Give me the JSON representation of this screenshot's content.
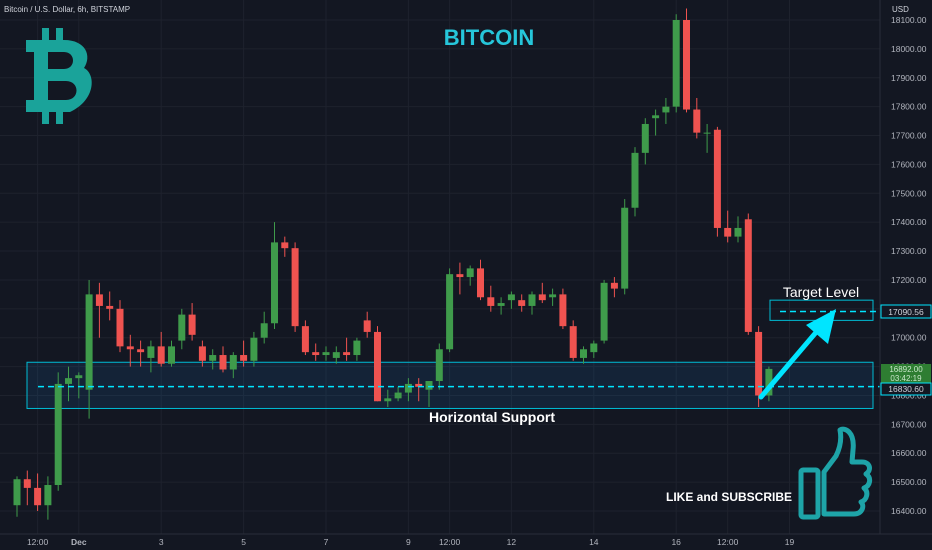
{
  "header": {
    "symbol_line": "Bitcoin / U.S. Dollar, 6h, BITSTAMP",
    "currency": "USD"
  },
  "title": "BITCOIN",
  "annotations": {
    "target_label": "Target Level",
    "support_label": "Horizontal Support",
    "cta_label": "LIKE and SUBSCRIBE"
  },
  "price_tags": {
    "target": "17090.56",
    "support": "16830.60",
    "last": "16892.00",
    "countdown": "03:42:19"
  },
  "colors": {
    "background": "#131722",
    "up": "#26a69a",
    "up_body": "#3f9b4b",
    "down": "#ef5350",
    "accent": "#00e5ff",
    "title": "#26c6da",
    "logo": "#1aa39a",
    "thumb": "#1ea4a8"
  },
  "icons": {
    "logo": "bitcoin-logo-icon",
    "cta": "thumbs-up-icon"
  },
  "chart_data": {
    "type": "candlestick",
    "title": "BITCOIN",
    "ylabel": "USD",
    "ylim": [
      16350,
      18140
    ],
    "y_ticks": [
      16400,
      16500,
      16600,
      16700,
      16800,
      16900,
      17000,
      17100,
      17200,
      17300,
      17400,
      17500,
      17600,
      17700,
      17800,
      17900,
      18000,
      18100
    ],
    "x_tick_labels": [
      {
        "label": "12:00",
        "candle": 2
      },
      {
        "label": "Dec",
        "candle": 6
      },
      {
        "label": "3",
        "candle": 14
      },
      {
        "label": "5",
        "candle": 22
      },
      {
        "label": "7",
        "candle": 30
      },
      {
        "label": "9",
        "candle": 38
      },
      {
        "label": "12:00",
        "candle": 42
      },
      {
        "label": "12",
        "candle": 48
      },
      {
        "label": "14",
        "candle": 56
      },
      {
        "label": "16",
        "candle": 64
      },
      {
        "label": "12:00",
        "candle": 69
      },
      {
        "label": "19",
        "candle": 75
      }
    ],
    "candles": [
      {
        "o": 16420,
        "h": 16520,
        "l": 16380,
        "c": 16510
      },
      {
        "o": 16510,
        "h": 16540,
        "l": 16420,
        "c": 16480
      },
      {
        "o": 16480,
        "h": 16530,
        "l": 16400,
        "c": 16420
      },
      {
        "o": 16420,
        "h": 16520,
        "l": 16370,
        "c": 16490
      },
      {
        "o": 16490,
        "h": 16880,
        "l": 16470,
        "c": 16840
      },
      {
        "o": 16840,
        "h": 16900,
        "l": 16780,
        "c": 16860
      },
      {
        "o": 16860,
        "h": 16880,
        "l": 16790,
        "c": 16870
      },
      {
        "o": 16820,
        "h": 17200,
        "l": 16720,
        "c": 17150
      },
      {
        "o": 17150,
        "h": 17190,
        "l": 17000,
        "c": 17110
      },
      {
        "o": 17110,
        "h": 17160,
        "l": 17060,
        "c": 17100
      },
      {
        "o": 17100,
        "h": 17130,
        "l": 16950,
        "c": 16970
      },
      {
        "o": 16970,
        "h": 17010,
        "l": 16900,
        "c": 16960
      },
      {
        "o": 16960,
        "h": 16990,
        "l": 16900,
        "c": 16950
      },
      {
        "o": 16930,
        "h": 16990,
        "l": 16880,
        "c": 16970
      },
      {
        "o": 16970,
        "h": 17020,
        "l": 16900,
        "c": 16910
      },
      {
        "o": 16910,
        "h": 16990,
        "l": 16900,
        "c": 16970
      },
      {
        "o": 16990,
        "h": 17100,
        "l": 16960,
        "c": 17080
      },
      {
        "o": 17080,
        "h": 17120,
        "l": 16990,
        "c": 17010
      },
      {
        "o": 16970,
        "h": 16990,
        "l": 16900,
        "c": 16920
      },
      {
        "o": 16920,
        "h": 16960,
        "l": 16890,
        "c": 16940
      },
      {
        "o": 16940,
        "h": 16970,
        "l": 16880,
        "c": 16890
      },
      {
        "o": 16890,
        "h": 16950,
        "l": 16860,
        "c": 16940
      },
      {
        "o": 16940,
        "h": 16990,
        "l": 16900,
        "c": 16920
      },
      {
        "o": 16920,
        "h": 17020,
        "l": 16900,
        "c": 17000
      },
      {
        "o": 17000,
        "h": 17090,
        "l": 16980,
        "c": 17050
      },
      {
        "o": 17050,
        "h": 17400,
        "l": 17030,
        "c": 17330
      },
      {
        "o": 17330,
        "h": 17350,
        "l": 17280,
        "c": 17310
      },
      {
        "o": 17310,
        "h": 17330,
        "l": 17020,
        "c": 17040
      },
      {
        "o": 17040,
        "h": 17060,
        "l": 16940,
        "c": 16950
      },
      {
        "o": 16950,
        "h": 16980,
        "l": 16920,
        "c": 16940
      },
      {
        "o": 16940,
        "h": 16970,
        "l": 16920,
        "c": 16950
      },
      {
        "o": 16930,
        "h": 16970,
        "l": 16910,
        "c": 16950
      },
      {
        "o": 16950,
        "h": 17000,
        "l": 16920,
        "c": 16940
      },
      {
        "o": 16940,
        "h": 17000,
        "l": 16920,
        "c": 16990
      },
      {
        "o": 17060,
        "h": 17090,
        "l": 17000,
        "c": 17020
      },
      {
        "o": 17020,
        "h": 17040,
        "l": 16780,
        "c": 16780
      },
      {
        "o": 16780,
        "h": 16820,
        "l": 16760,
        "c": 16790
      },
      {
        "o": 16790,
        "h": 16830,
        "l": 16780,
        "c": 16810
      },
      {
        "o": 16810,
        "h": 16860,
        "l": 16780,
        "c": 16840
      },
      {
        "o": 16840,
        "h": 16860,
        "l": 16780,
        "c": 16830
      },
      {
        "o": 16820,
        "h": 16850,
        "l": 16760,
        "c": 16850
      },
      {
        "o": 16850,
        "h": 16980,
        "l": 16820,
        "c": 16960
      },
      {
        "o": 16960,
        "h": 17240,
        "l": 16950,
        "c": 17220
      },
      {
        "o": 17220,
        "h": 17260,
        "l": 17150,
        "c": 17210
      },
      {
        "o": 17210,
        "h": 17250,
        "l": 17180,
        "c": 17240
      },
      {
        "o": 17240,
        "h": 17270,
        "l": 17130,
        "c": 17140
      },
      {
        "o": 17140,
        "h": 17180,
        "l": 17090,
        "c": 17110
      },
      {
        "o": 17110,
        "h": 17140,
        "l": 17080,
        "c": 17120
      },
      {
        "o": 17130,
        "h": 17160,
        "l": 17100,
        "c": 17150
      },
      {
        "o": 17130,
        "h": 17150,
        "l": 17090,
        "c": 17110
      },
      {
        "o": 17110,
        "h": 17160,
        "l": 17080,
        "c": 17150
      },
      {
        "o": 17150,
        "h": 17190,
        "l": 17120,
        "c": 17130
      },
      {
        "o": 17140,
        "h": 17170,
        "l": 17110,
        "c": 17150
      },
      {
        "o": 17150,
        "h": 17170,
        "l": 17030,
        "c": 17040
      },
      {
        "o": 17040,
        "h": 17060,
        "l": 16920,
        "c": 16930
      },
      {
        "o": 16930,
        "h": 16970,
        "l": 16910,
        "c": 16960
      },
      {
        "o": 16950,
        "h": 16990,
        "l": 16930,
        "c": 16980
      },
      {
        "o": 16990,
        "h": 17200,
        "l": 16980,
        "c": 17190
      },
      {
        "o": 17190,
        "h": 17210,
        "l": 17140,
        "c": 17170
      },
      {
        "o": 17170,
        "h": 17480,
        "l": 17150,
        "c": 17450
      },
      {
        "o": 17450,
        "h": 17660,
        "l": 17420,
        "c": 17640
      },
      {
        "o": 17640,
        "h": 17760,
        "l": 17600,
        "c": 17740
      },
      {
        "o": 17760,
        "h": 17790,
        "l": 17700,
        "c": 17770
      },
      {
        "o": 17780,
        "h": 17830,
        "l": 17740,
        "c": 17800
      },
      {
        "o": 17800,
        "h": 18120,
        "l": 17780,
        "c": 18100
      },
      {
        "o": 18100,
        "h": 18140,
        "l": 17780,
        "c": 17790
      },
      {
        "o": 17790,
        "h": 17830,
        "l": 17690,
        "c": 17710
      },
      {
        "o": 17710,
        "h": 17740,
        "l": 17640,
        "c": 17710
      },
      {
        "o": 17720,
        "h": 17730,
        "l": 17350,
        "c": 17380
      },
      {
        "o": 17380,
        "h": 17440,
        "l": 17330,
        "c": 17350
      },
      {
        "o": 17350,
        "h": 17420,
        "l": 17330,
        "c": 17380
      },
      {
        "o": 17410,
        "h": 17430,
        "l": 17010,
        "c": 17020
      },
      {
        "o": 17020,
        "h": 17040,
        "l": 16760,
        "c": 16800
      },
      {
        "o": 16800,
        "h": 16900,
        "l": 16780,
        "c": 16892
      }
    ],
    "price_lines": [
      {
        "label": "Target Level",
        "value": 17090.56
      },
      {
        "label": "Horizontal Support",
        "value": 16830.6
      }
    ],
    "zones": [
      {
        "label": "Target Level",
        "from": 17060,
        "to": 17130
      },
      {
        "label": "Horizontal Support",
        "from": 16755,
        "to": 16915
      }
    ]
  }
}
